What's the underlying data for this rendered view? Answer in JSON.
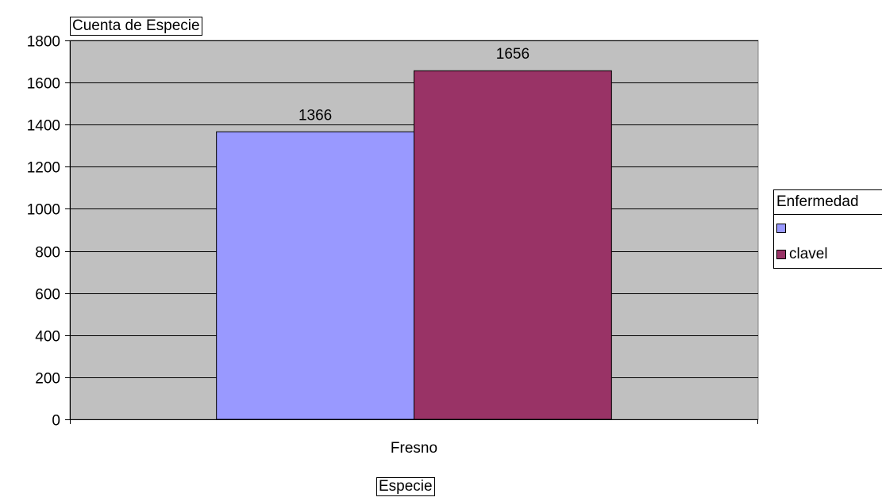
{
  "chart_data": {
    "type": "bar",
    "categories": [
      "Fresno"
    ],
    "series": [
      {
        "name": "",
        "values": [
          1366
        ],
        "color": "#9999ff"
      },
      {
        "name": "clavel",
        "values": [
          1656
        ],
        "color": "#993366"
      }
    ],
    "data_labels": [
      "1366",
      "1656"
    ],
    "ylim": [
      0,
      1800
    ],
    "yticks": [
      0,
      200,
      400,
      600,
      800,
      1000,
      1200,
      1400,
      1600,
      1800
    ],
    "grid": true,
    "plot_background": "#c0c0c0",
    "legend_position": "right",
    "legend_title": "Enfermedad",
    "value_field": "Cuenta de Especie",
    "category_field": "Especie"
  }
}
